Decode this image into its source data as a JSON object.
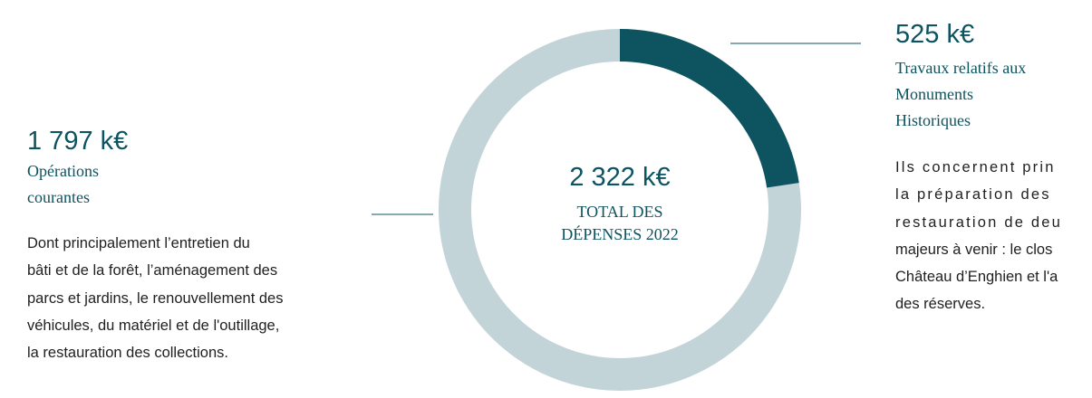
{
  "chart_data": {
    "type": "pie",
    "donut": true,
    "categories": [
      "Opérations courantes",
      "Travaux relatifs aux Monuments Historiques"
    ],
    "values": [
      1797,
      525
    ],
    "value_labels": [
      "1 797 k€",
      "525 k€"
    ],
    "colors": [
      "#c3d4d9",
      "#0d5360"
    ],
    "descriptions": [
      [
        "Dont principalement l’entretien du",
        "bâti et de la forêt, l’aménagement des",
        "parcs et jardins, le renouvellement des",
        "véhicules, du matériel et de l'outillage,",
        "la restauration des collections."
      ],
      [
        "Ils concernent prin",
        "la préparation des",
        "restauration de deu",
        "majeurs à venir : le clos",
        "Château d’Enghien et l'a",
        "des réserves."
      ]
    ],
    "total": 2322,
    "total_label": "2 322 k€",
    "total_title": "TOTAL DES DÉPENSES 2022"
  }
}
